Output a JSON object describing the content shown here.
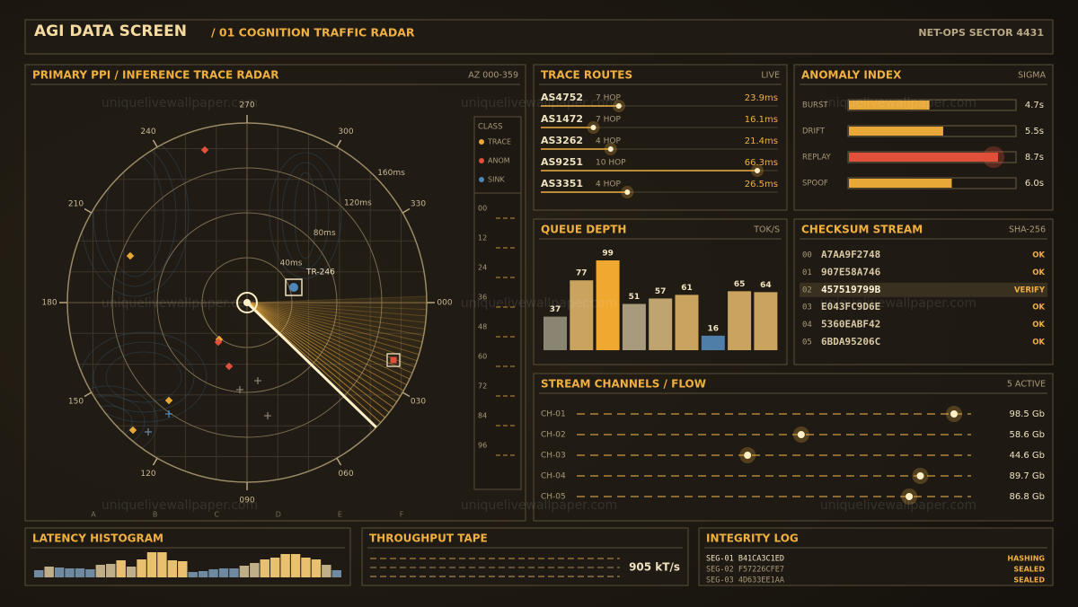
{
  "header": {
    "title": "AGI DATA SCREEN",
    "subtitle": "/ 01 COGNITION TRAFFIC RADAR",
    "sector": "NET-OPS SECTOR 4431"
  },
  "watermark": "uniquelivewallpaper.com",
  "radar": {
    "title": "PRIMARY PPI / INFERENCE TRACE RADAR",
    "corner": "AZ 000-359",
    "bearings": [
      {
        "value": 0,
        "label": "000"
      },
      {
        "value": 30,
        "label": "030"
      },
      {
        "value": 60,
        "label": "060"
      },
      {
        "value": 90,
        "label": "090"
      },
      120,
      150,
      180,
      210,
      240,
      270,
      300,
      330
    ],
    "rings": [
      {
        "value": 40,
        "label": "40ms"
      },
      {
        "value": 80,
        "label": "80ms"
      },
      {
        "value": 120,
        "label": "120ms"
      },
      {
        "value": 160,
        "label": "160ms"
      }
    ],
    "target": "TR-246",
    "columns": [
      "A",
      "B",
      "C",
      "D",
      "E",
      "F"
    ],
    "legend": {
      "title": "CLASS",
      "items": [
        {
          "name": "TRACE",
          "color": "#e8a838"
        },
        {
          "name": "ANOM",
          "color": "#e0503a"
        },
        {
          "name": "SINK",
          "color": "#4f86b8"
        }
      ]
    },
    "scale": [
      {
        "value": 0,
        "label": "00"
      },
      12,
      24,
      36,
      48,
      60,
      72,
      84,
      96
    ]
  },
  "trace_routes": {
    "title": "TRACE ROUTES",
    "corner": "LIVE",
    "rows": [
      {
        "asn": "AS4752",
        "hops": 7,
        "hops_label": "7 HOP",
        "latency": 23.9,
        "latency_label": "23.9ms"
      },
      {
        "asn": "AS1472",
        "hops": 7,
        "hops_label": "7 HOP",
        "latency": 16.1,
        "latency_label": "16.1ms"
      },
      {
        "asn": "AS3262",
        "hops": 4,
        "hops_label": "4 HOP",
        "latency": 21.4,
        "latency_label": "21.4ms"
      },
      {
        "asn": "AS9251",
        "hops": 10,
        "hops_label": "10 HOP",
        "latency": 66.3,
        "latency_label": "66.3ms"
      },
      {
        "asn": "AS3351",
        "hops": 4,
        "hops_label": "4 HOP",
        "latency": 26.5,
        "latency_label": "26.5ms"
      }
    ]
  },
  "anomaly_index": {
    "title": "ANOMALY INDEX",
    "corner": "SIGMA",
    "rows": [
      {
        "name": "BURST",
        "value": 4.7,
        "label": "4.7s",
        "color": "#e8a838"
      },
      {
        "name": "DRIFT",
        "value": 5.5,
        "label": "5.5s",
        "color": "#e8a838"
      },
      {
        "name": "REPLAY",
        "value": 8.7,
        "label": "8.7s",
        "color": "#e0503a"
      },
      {
        "name": "SPOOF",
        "value": 6.0,
        "label": "6.0s",
        "color": "#e8a838"
      }
    ]
  },
  "queue_depth": {
    "title": "QUEUE DEPTH",
    "corner": "TOK/S",
    "values": [
      37,
      77,
      99,
      51,
      57,
      61,
      16,
      65,
      64
    ],
    "colors": [
      "#8a8572",
      "#caa35e",
      "#f0a830",
      "#a89a7c",
      "#bfa470",
      "#caa35e",
      "#4f7ea8",
      "#caa35e",
      "#caa35e"
    ]
  },
  "checksum_stream": {
    "title": "CHECKSUM STREAM",
    "corner": "SHA-256",
    "rows": [
      {
        "index": "00",
        "hash": "A7AA9F2748",
        "status": "OK"
      },
      {
        "index": "01",
        "hash": "907E58A746",
        "status": "OK"
      },
      {
        "index": "02",
        "hash": "457519799B",
        "status": "VERIFY"
      },
      {
        "index": "03",
        "hash": "E043FC9D6E",
        "status": "OK"
      },
      {
        "index": "04",
        "hash": "5360EABF42",
        "status": "OK"
      },
      {
        "index": "05",
        "hash": "6BDA95206C",
        "status": "OK"
      }
    ]
  },
  "stream_channels": {
    "title": "STREAM CHANNELS / FLOW",
    "corner": "5 ACTIVE",
    "rows": [
      {
        "name": "CH-01",
        "value": 98.5,
        "label": "98.5 Gb"
      },
      {
        "name": "CH-02",
        "value": 58.6,
        "label": "58.6 Gb"
      },
      {
        "name": "CH-03",
        "value": 44.6,
        "label": "44.6 Gb"
      },
      {
        "name": "CH-04",
        "value": 89.7,
        "label": "89.7 Gb"
      },
      {
        "name": "CH-05",
        "value": 86.8,
        "label": "86.8 Gb"
      }
    ]
  },
  "latency_histogram": {
    "title": "LATENCY HISTOGRAM",
    "values": [
      8,
      12,
      11,
      10,
      10,
      9,
      14,
      15,
      19,
      12,
      20,
      28,
      28,
      19,
      18,
      6,
      7,
      9,
      10,
      10,
      13,
      16,
      20,
      22,
      26,
      26,
      22,
      20,
      14,
      8
    ]
  },
  "throughput_tape": {
    "title": "THROUGHPUT TAPE",
    "readout": "905 kT/s"
  },
  "integrity_log": {
    "title": "INTEGRITY LOG",
    "rows": [
      {
        "segment": "SEG-01 B41CA3C1ED",
        "status": "HASHING"
      },
      {
        "segment": "SEG-02 F57226CFE7",
        "status": "SEALED"
      },
      {
        "segment": "SEG-03 4D633EE1AA",
        "status": "SEALED"
      }
    ]
  }
}
